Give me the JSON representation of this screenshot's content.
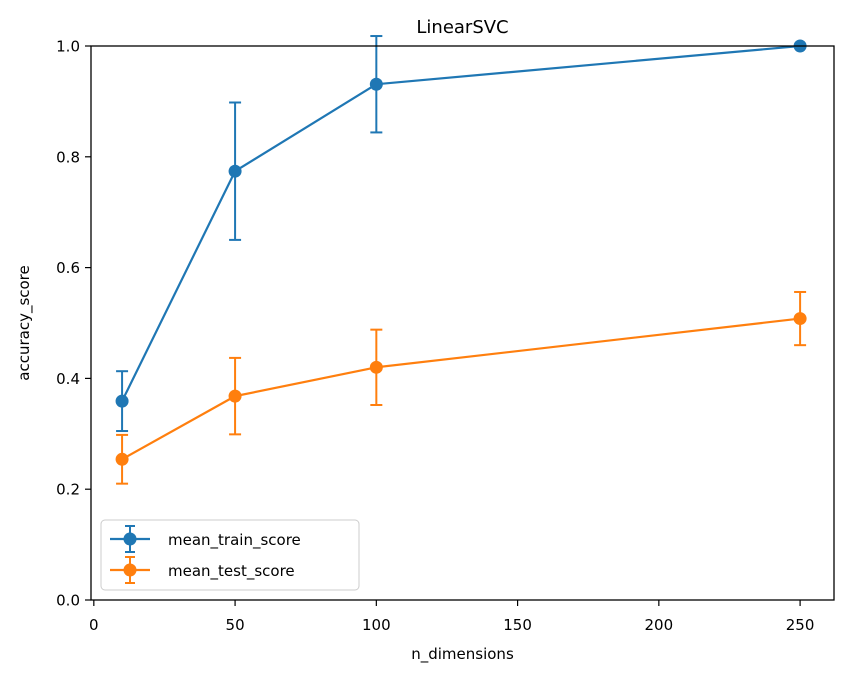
{
  "chart_data": {
    "type": "line",
    "title": "LinearSVC",
    "xlabel": "n_dimensions",
    "ylabel": "accuracy_score",
    "xlim": [
      -1,
      262
    ],
    "ylim": [
      0.0,
      1.0
    ],
    "xticks": [
      0,
      50,
      100,
      150,
      200,
      250
    ],
    "yticks": [
      0.0,
      0.2,
      0.4,
      0.6,
      0.8,
      1.0
    ],
    "ytick_labels": [
      "0.0",
      "0.2",
      "0.4",
      "0.6",
      "0.8",
      "1.0"
    ],
    "grid": false,
    "legend_position": "lower-left",
    "x": [
      10,
      50,
      100,
      250
    ],
    "series": [
      {
        "name": "mean_train_score",
        "color": "#1f77b4",
        "values": [
          0.359,
          0.774,
          0.931,
          1.0
        ],
        "errors": [
          0.054,
          0.124,
          0.087,
          0.0
        ]
      },
      {
        "name": "mean_test_score",
        "color": "#ff7f0e",
        "values": [
          0.254,
          0.368,
          0.42,
          0.508
        ],
        "errors": [
          0.044,
          0.069,
          0.068,
          0.048
        ]
      }
    ]
  }
}
